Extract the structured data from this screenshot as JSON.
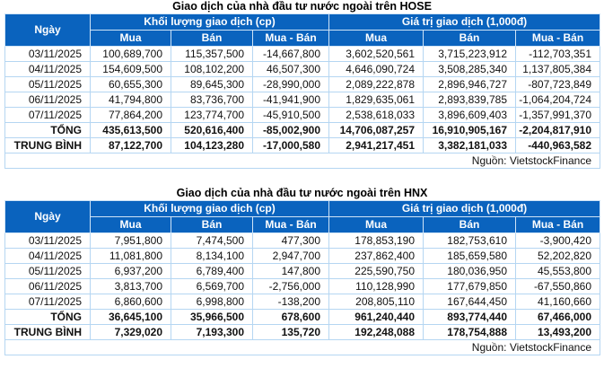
{
  "colors": {
    "header_bg": "#0a63be",
    "header_text": "#ffffff",
    "grid_line": "#b5d6f2",
    "positive": "#2aa678",
    "negative": "#e8364a",
    "text": "#111111",
    "page_bg": "#ffffff"
  },
  "tables": [
    {
      "id": "hose",
      "title": "Giao dịch của nhà đầu tư nước ngoài trên HOSE",
      "headers": {
        "date": "Ngày",
        "volume_group": "Khối lượng giao dịch (cp)",
        "value_group": "Giá trị giao dịch (1,000đ)",
        "sub": [
          "Mua",
          "Bán",
          "Mua - Bán",
          "Mua",
          "Bán",
          "Mua - Bán"
        ]
      },
      "rows": [
        {
          "date": "03/11/2025",
          "values": [
            "100,689,700",
            "115,357,500",
            "-14,667,800",
            "3,602,520,561",
            "3,715,223,912",
            "-112,703,351"
          ]
        },
        {
          "date": "04/11/2025",
          "values": [
            "154,609,500",
            "108,102,200",
            "46,507,300",
            "4,646,090,724",
            "3,508,285,340",
            "1,137,805,384"
          ]
        },
        {
          "date": "05/11/2025",
          "values": [
            "60,655,300",
            "89,645,300",
            "-28,990,000",
            "2,089,222,878",
            "2,896,946,727",
            "-807,723,849"
          ]
        },
        {
          "date": "06/11/2025",
          "values": [
            "41,794,800",
            "83,736,700",
            "-41,941,900",
            "1,829,635,061",
            "2,893,839,785",
            "-1,064,204,724"
          ]
        },
        {
          "date": "07/11/2025",
          "values": [
            "77,864,200",
            "123,774,700",
            "-45,910,500",
            "2,538,618,033",
            "3,896,609,403",
            "-1,357,991,370"
          ]
        }
      ],
      "total": {
        "label": "TỔNG",
        "values": [
          "435,613,500",
          "520,616,400",
          "-85,002,900",
          "14,706,087,257",
          "16,910,905,167",
          "-2,204,817,910"
        ]
      },
      "average": {
        "label": "TRUNG BÌNH",
        "values": [
          "87,122,700",
          "104,123,280",
          "-17,000,580",
          "2,941,217,451",
          "3,382,181,033",
          "-440,963,582"
        ]
      },
      "source": "Nguồn: VietstockFinance"
    },
    {
      "id": "hnx",
      "title": "Giao dịch của nhà đầu tư nước ngoài trên HNX",
      "headers": {
        "date": "Ngày",
        "volume_group": "Khối lượng giao dịch (cp)",
        "value_group": "Giá trị giao dịch (1,000đ)",
        "sub": [
          "Mua",
          "Bán",
          "Mua - Bán",
          "Mua",
          "Bán",
          "Mua - Bán"
        ]
      },
      "rows": [
        {
          "date": "03/11/2025",
          "values": [
            "7,951,800",
            "7,474,500",
            "477,300",
            "178,853,190",
            "182,753,610",
            "-3,900,420"
          ]
        },
        {
          "date": "04/11/2025",
          "values": [
            "11,081,800",
            "8,134,100",
            "2,947,700",
            "237,862,400",
            "185,659,580",
            "52,202,820"
          ]
        },
        {
          "date": "05/11/2025",
          "values": [
            "6,937,200",
            "6,789,400",
            "147,800",
            "225,590,750",
            "180,036,950",
            "45,553,800"
          ]
        },
        {
          "date": "06/11/2025",
          "values": [
            "3,813,700",
            "6,569,700",
            "-2,756,000",
            "110,128,990",
            "177,679,850",
            "-67,550,860"
          ]
        },
        {
          "date": "07/11/2025",
          "values": [
            "6,860,600",
            "6,998,800",
            "-138,200",
            "208,805,110",
            "167,644,450",
            "41,160,660"
          ]
        }
      ],
      "total": {
        "label": "TỔNG",
        "values": [
          "36,645,100",
          "35,966,500",
          "678,600",
          "961,240,440",
          "893,774,440",
          "67,466,000"
        ]
      },
      "average": {
        "label": "TRUNG BÌNH",
        "values": [
          "7,329,020",
          "7,193,300",
          "135,720",
          "192,248,088",
          "178,754,888",
          "13,493,200"
        ]
      },
      "source": "Nguồn: VietstockFinance"
    }
  ],
  "chart_data": [
    {
      "type": "table",
      "title": "Giao dịch của nhà đầu tư nước ngoài trên HOSE",
      "column_groups": [
        "Ngày",
        "Khối lượng giao dịch (cp)",
        "Giá trị giao dịch (1,000đ)"
      ],
      "columns": [
        "Ngày",
        "KL Mua",
        "KL Bán",
        "KL Mua - Bán",
        "GT Mua",
        "GT Bán",
        "GT Mua - Bán"
      ],
      "rows": [
        [
          "03/11/2025",
          100689700,
          115357500,
          -14667800,
          3602520561,
          3715223912,
          -112703351
        ],
        [
          "04/11/2025",
          154609500,
          108102200,
          46507300,
          4646090724,
          3508285340,
          1137805384
        ],
        [
          "05/11/2025",
          60655300,
          89645300,
          -28990000,
          2089222878,
          2896946727,
          -807723849
        ],
        [
          "06/11/2025",
          41794800,
          83736700,
          -41941900,
          1829635061,
          2893839785,
          -1064204724
        ],
        [
          "07/11/2025",
          77864200,
          123774700,
          -45910500,
          2538618033,
          3896609403,
          -1357991370
        ],
        [
          "TỔNG",
          435613500,
          520616400,
          -85002900,
          14706087257,
          16910905167,
          -2204817910
        ],
        [
          "TRUNG BÌNH",
          87122700,
          104123280,
          -17000580,
          2941217451,
          3382181033,
          -440963582
        ]
      ],
      "source": "Nguồn: VietstockFinance"
    },
    {
      "type": "table",
      "title": "Giao dịch của nhà đầu tư nước ngoài trên HNX",
      "column_groups": [
        "Ngày",
        "Khối lượng giao dịch (cp)",
        "Giá trị giao dịch (1,000đ)"
      ],
      "columns": [
        "Ngày",
        "KL Mua",
        "KL Bán",
        "KL Mua - Bán",
        "GT Mua",
        "GT Bán",
        "GT Mua - Bán"
      ],
      "rows": [
        [
          "03/11/2025",
          7951800,
          7474500,
          477300,
          178853190,
          182753610,
          -3900420
        ],
        [
          "04/11/2025",
          11081800,
          8134100,
          2947700,
          237862400,
          185659580,
          52202820
        ],
        [
          "05/11/2025",
          6937200,
          6789400,
          147800,
          225590750,
          180036950,
          45553800
        ],
        [
          "06/11/2025",
          3813700,
          6569700,
          -2756000,
          110128990,
          177679850,
          -67550860
        ],
        [
          "07/11/2025",
          6860600,
          6998800,
          -138200,
          208805110,
          167644450,
          41160660
        ],
        [
          "TỔNG",
          36645100,
          35966500,
          678600,
          961240440,
          893774440,
          67466000
        ],
        [
          "TRUNG BÌNH",
          7329020,
          7193300,
          135720,
          192248088,
          178754888,
          13493200
        ]
      ],
      "source": "Nguồn: VietstockFinance"
    }
  ]
}
